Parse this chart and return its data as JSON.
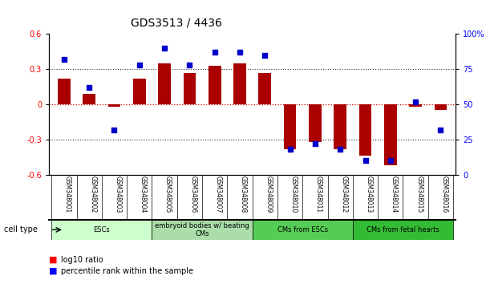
{
  "title": "GDS3513 / 4436",
  "samples": [
    "GSM348001",
    "GSM348002",
    "GSM348003",
    "GSM348004",
    "GSM348005",
    "GSM348006",
    "GSM348007",
    "GSM348008",
    "GSM348009",
    "GSM348010",
    "GSM348011",
    "GSM348012",
    "GSM348013",
    "GSM348014",
    "GSM348015",
    "GSM348016"
  ],
  "log10_ratio": [
    0.22,
    0.09,
    -0.02,
    0.22,
    0.35,
    0.27,
    0.33,
    0.35,
    0.27,
    -0.38,
    -0.32,
    -0.38,
    -0.44,
    -0.52,
    -0.02,
    -0.05
  ],
  "percentile_rank": [
    82,
    62,
    32,
    78,
    90,
    78,
    87,
    87,
    85,
    18,
    22,
    18,
    10,
    10,
    52,
    32
  ],
  "cell_groups": [
    {
      "label": "ESCs",
      "start": 0,
      "end": 3
    },
    {
      "label": "embryoid bodies w/ beating\nCMs",
      "start": 4,
      "end": 7
    },
    {
      "label": "CMs from ESCs",
      "start": 8,
      "end": 11
    },
    {
      "label": "CMs from fetal hearts",
      "start": 12,
      "end": 15
    }
  ],
  "cell_colors": [
    "#ccffcc",
    "#aaddaa",
    "#55cc55",
    "#33bb33"
  ],
  "ylim_left": [
    -0.6,
    0.6
  ],
  "ylim_right": [
    0,
    100
  ],
  "yticks_left": [
    -0.6,
    -0.3,
    0.0,
    0.3,
    0.6
  ],
  "yticks_right": [
    0,
    25,
    50,
    75,
    100
  ],
  "ytick_labels_right": [
    "0",
    "25",
    "50",
    "75",
    "100%"
  ],
  "bar_color": "#aa0000",
  "dot_color": "#0000cc",
  "hline_color": "#cc0000",
  "dotted_color": "#333333",
  "bg_color": "#ffffff"
}
